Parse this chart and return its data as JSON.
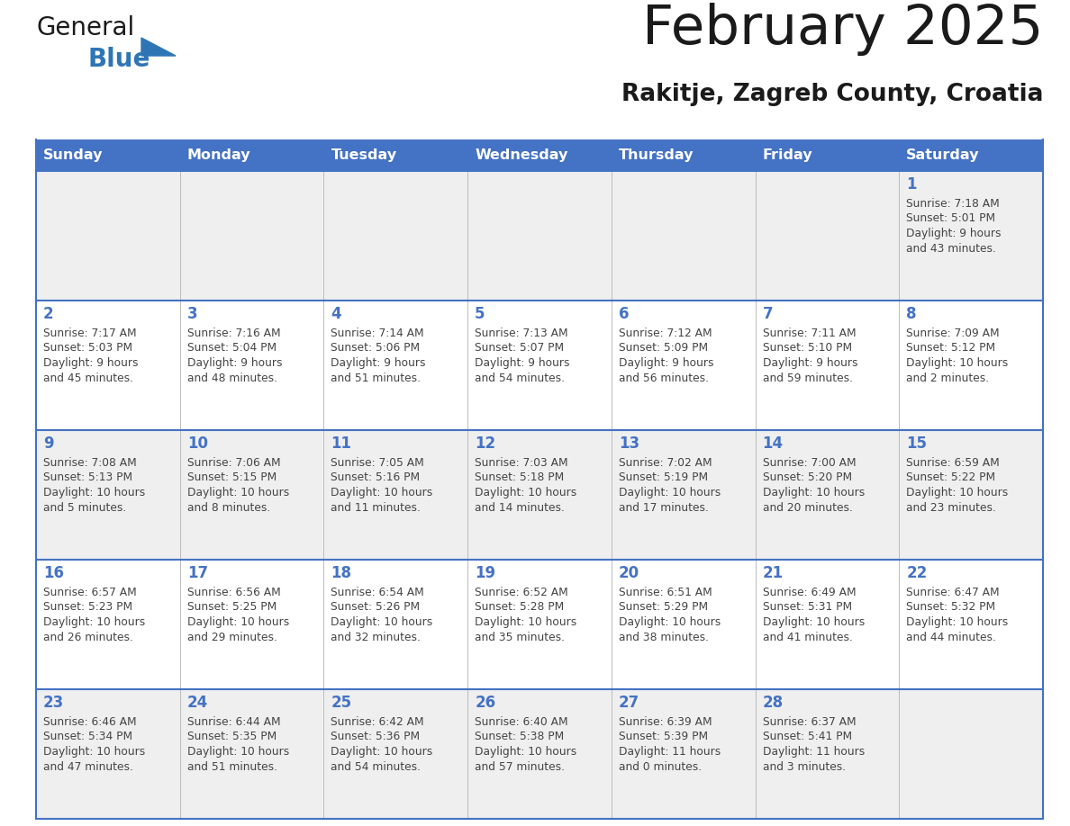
{
  "title": "February 2025",
  "subtitle": "Rakitje, Zagreb County, Croatia",
  "header_bg": "#4472C4",
  "header_text": "#FFFFFF",
  "header_days": [
    "Sunday",
    "Monday",
    "Tuesday",
    "Wednesday",
    "Thursday",
    "Friday",
    "Saturday"
  ],
  "row_bg_odd": "#EFEFEF",
  "row_bg_even": "#FFFFFF",
  "cell_border_color": "#4472C4",
  "day_number_color": "#4472C4",
  "info_text_color": "#444444",
  "logo_general_color": "#1a1a1a",
  "logo_blue_color": "#2E75B6",
  "title_color": "#1a1a1a",
  "calendar_data": [
    [
      null,
      null,
      null,
      null,
      null,
      null,
      {
        "day": 1,
        "sunrise": "7:18 AM",
        "sunset": "5:01 PM",
        "daylight": "9 hours",
        "daylight2": "and 43 minutes."
      }
    ],
    [
      {
        "day": 2,
        "sunrise": "7:17 AM",
        "sunset": "5:03 PM",
        "daylight": "9 hours",
        "daylight2": "and 45 minutes."
      },
      {
        "day": 3,
        "sunrise": "7:16 AM",
        "sunset": "5:04 PM",
        "daylight": "9 hours",
        "daylight2": "and 48 minutes."
      },
      {
        "day": 4,
        "sunrise": "7:14 AM",
        "sunset": "5:06 PM",
        "daylight": "9 hours",
        "daylight2": "and 51 minutes."
      },
      {
        "day": 5,
        "sunrise": "7:13 AM",
        "sunset": "5:07 PM",
        "daylight": "9 hours",
        "daylight2": "and 54 minutes."
      },
      {
        "day": 6,
        "sunrise": "7:12 AM",
        "sunset": "5:09 PM",
        "daylight": "9 hours",
        "daylight2": "and 56 minutes."
      },
      {
        "day": 7,
        "sunrise": "7:11 AM",
        "sunset": "5:10 PM",
        "daylight": "9 hours",
        "daylight2": "and 59 minutes."
      },
      {
        "day": 8,
        "sunrise": "7:09 AM",
        "sunset": "5:12 PM",
        "daylight": "10 hours",
        "daylight2": "and 2 minutes."
      }
    ],
    [
      {
        "day": 9,
        "sunrise": "7:08 AM",
        "sunset": "5:13 PM",
        "daylight": "10 hours",
        "daylight2": "and 5 minutes."
      },
      {
        "day": 10,
        "sunrise": "7:06 AM",
        "sunset": "5:15 PM",
        "daylight": "10 hours",
        "daylight2": "and 8 minutes."
      },
      {
        "day": 11,
        "sunrise": "7:05 AM",
        "sunset": "5:16 PM",
        "daylight": "10 hours",
        "daylight2": "and 11 minutes."
      },
      {
        "day": 12,
        "sunrise": "7:03 AM",
        "sunset": "5:18 PM",
        "daylight": "10 hours",
        "daylight2": "and 14 minutes."
      },
      {
        "day": 13,
        "sunrise": "7:02 AM",
        "sunset": "5:19 PM",
        "daylight": "10 hours",
        "daylight2": "and 17 minutes."
      },
      {
        "day": 14,
        "sunrise": "7:00 AM",
        "sunset": "5:20 PM",
        "daylight": "10 hours",
        "daylight2": "and 20 minutes."
      },
      {
        "day": 15,
        "sunrise": "6:59 AM",
        "sunset": "5:22 PM",
        "daylight": "10 hours",
        "daylight2": "and 23 minutes."
      }
    ],
    [
      {
        "day": 16,
        "sunrise": "6:57 AM",
        "sunset": "5:23 PM",
        "daylight": "10 hours",
        "daylight2": "and 26 minutes."
      },
      {
        "day": 17,
        "sunrise": "6:56 AM",
        "sunset": "5:25 PM",
        "daylight": "10 hours",
        "daylight2": "and 29 minutes."
      },
      {
        "day": 18,
        "sunrise": "6:54 AM",
        "sunset": "5:26 PM",
        "daylight": "10 hours",
        "daylight2": "and 32 minutes."
      },
      {
        "day": 19,
        "sunrise": "6:52 AM",
        "sunset": "5:28 PM",
        "daylight": "10 hours",
        "daylight2": "and 35 minutes."
      },
      {
        "day": 20,
        "sunrise": "6:51 AM",
        "sunset": "5:29 PM",
        "daylight": "10 hours",
        "daylight2": "and 38 minutes."
      },
      {
        "day": 21,
        "sunrise": "6:49 AM",
        "sunset": "5:31 PM",
        "daylight": "10 hours",
        "daylight2": "and 41 minutes."
      },
      {
        "day": 22,
        "sunrise": "6:47 AM",
        "sunset": "5:32 PM",
        "daylight": "10 hours",
        "daylight2": "and 44 minutes."
      }
    ],
    [
      {
        "day": 23,
        "sunrise": "6:46 AM",
        "sunset": "5:34 PM",
        "daylight": "10 hours",
        "daylight2": "and 47 minutes."
      },
      {
        "day": 24,
        "sunrise": "6:44 AM",
        "sunset": "5:35 PM",
        "daylight": "10 hours",
        "daylight2": "and 51 minutes."
      },
      {
        "day": 25,
        "sunrise": "6:42 AM",
        "sunset": "5:36 PM",
        "daylight": "10 hours",
        "daylight2": "and 54 minutes."
      },
      {
        "day": 26,
        "sunrise": "6:40 AM",
        "sunset": "5:38 PM",
        "daylight": "10 hours",
        "daylight2": "and 57 minutes."
      },
      {
        "day": 27,
        "sunrise": "6:39 AM",
        "sunset": "5:39 PM",
        "daylight": "11 hours",
        "daylight2": "and 0 minutes."
      },
      {
        "day": 28,
        "sunrise": "6:37 AM",
        "sunset": "5:41 PM",
        "daylight": "11 hours",
        "daylight2": "and 3 minutes."
      },
      null
    ]
  ]
}
